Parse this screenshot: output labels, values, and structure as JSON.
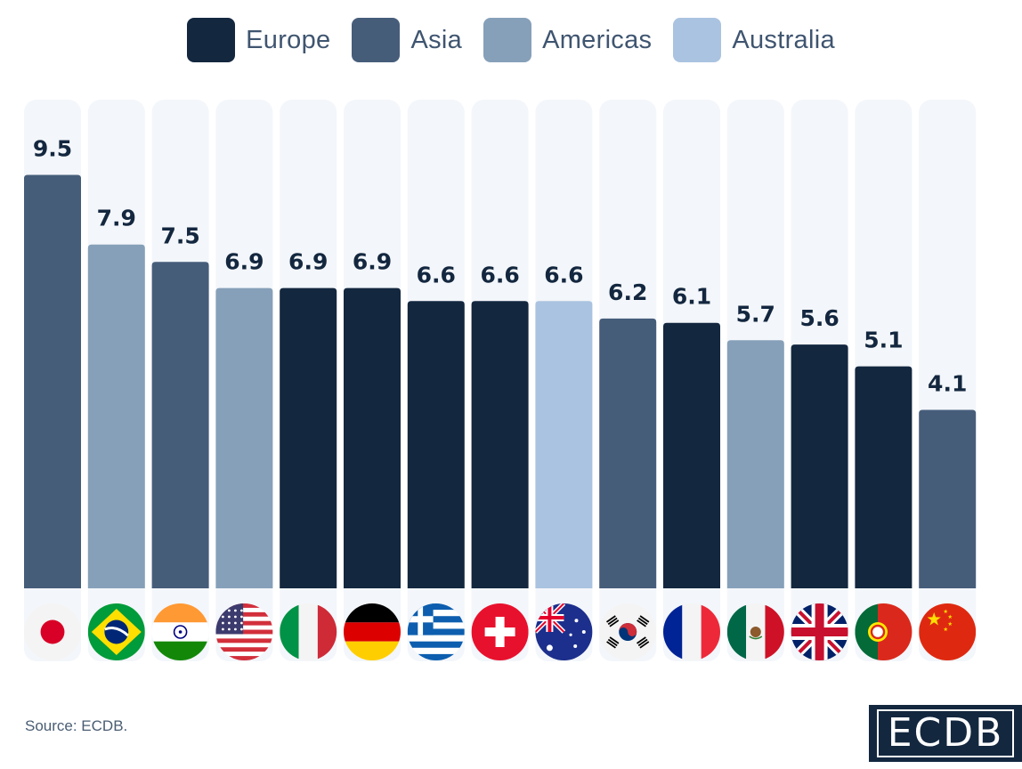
{
  "legend": [
    {
      "label": "Europe",
      "color": "#13273f"
    },
    {
      "label": "Asia",
      "color": "#465d7a"
    },
    {
      "label": "Americas",
      "color": "#86a0b9"
    },
    {
      "label": "Australia",
      "color": "#aac3e0"
    }
  ],
  "chart_data": {
    "type": "bar",
    "title": "",
    "xlabel": "",
    "ylabel": "",
    "ylim": [
      0,
      11.3
    ],
    "grid": false,
    "legend_position": "top-center",
    "categories": [
      "Japan",
      "Brazil",
      "India",
      "United States",
      "Italy",
      "Germany",
      "Greece",
      "Switzerland",
      "Australia",
      "South Korea",
      "France",
      "Mexico",
      "United Kingdom",
      "Portugal",
      "China"
    ],
    "values": [
      9.5,
      7.9,
      7.5,
      6.9,
      6.9,
      6.9,
      6.6,
      6.6,
      6.6,
      6.2,
      6.1,
      5.7,
      5.6,
      5.1,
      4.1
    ],
    "labels": [
      "9.5",
      "7.9",
      "7.5",
      "6.9",
      "6.9",
      "6.9",
      "6.6",
      "6.6",
      "6.6",
      "6.2",
      "6.1",
      "5.7",
      "5.6",
      "5.1",
      "4.1"
    ],
    "regions": [
      "Asia",
      "Americas",
      "Asia",
      "Americas",
      "Europe",
      "Europe",
      "Europe",
      "Europe",
      "Australia",
      "Asia",
      "Europe",
      "Americas",
      "Europe",
      "Europe",
      "Asia"
    ]
  },
  "footer": {
    "source": "Source: ECDB.",
    "brand": "ECDB"
  }
}
